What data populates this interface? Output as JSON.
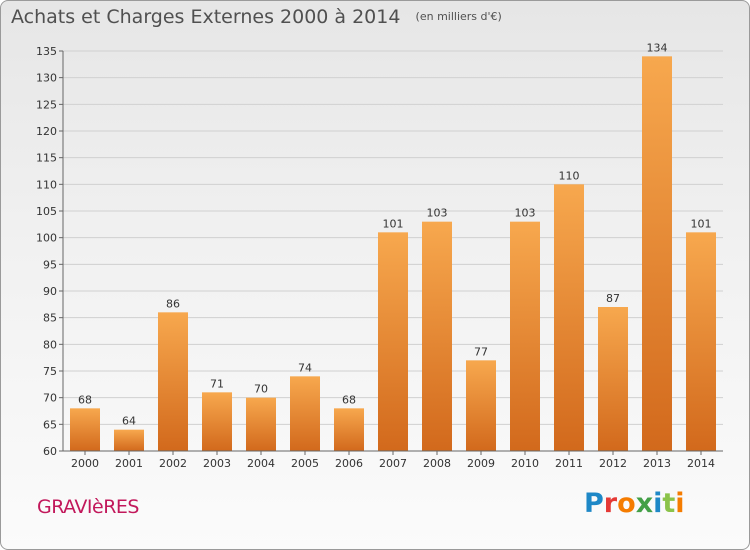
{
  "header": {
    "title": "Achats et Charges Externes 2000 à 2014",
    "subtitle": "(en milliers d'€)"
  },
  "footer": {
    "commune": "GRAVIèRES",
    "logo": "Proxiti",
    "logo_colors": [
      "#1e88c7",
      "#e53935",
      "#f57c00",
      "#43a047",
      "#1e88c7",
      "#8bc34a",
      "#f57c00"
    ]
  },
  "colors": {
    "bar_top": "#f7a84e",
    "bar_bottom": "#d2691c",
    "grid": "#d0d0d0",
    "axis_text": "#333333"
  },
  "chart_data": {
    "type": "bar",
    "title": "Achats et Charges Externes 2000 à 2014",
    "subtitle": "(en milliers d'€)",
    "xlabel": "",
    "ylabel": "",
    "categories": [
      "2000",
      "2001",
      "2002",
      "2003",
      "2004",
      "2005",
      "2006",
      "2007",
      "2008",
      "2009",
      "2010",
      "2011",
      "2012",
      "2013",
      "2014"
    ],
    "values": [
      68,
      64,
      86,
      71,
      70,
      74,
      68,
      101,
      103,
      77,
      103,
      110,
      87,
      134,
      101
    ],
    "ylim": [
      60,
      135
    ],
    "yticks": [
      60,
      65,
      70,
      75,
      80,
      85,
      90,
      95,
      100,
      105,
      110,
      115,
      120,
      125,
      130,
      135
    ],
    "grid": true,
    "data_labels": true
  }
}
